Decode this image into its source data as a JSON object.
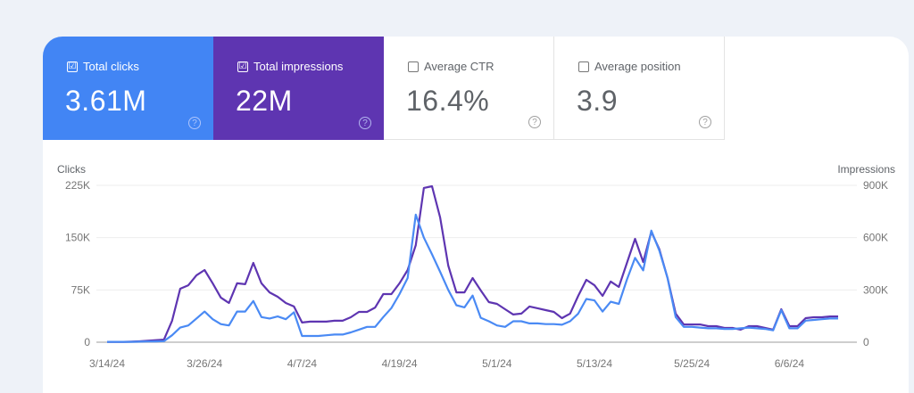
{
  "metrics": [
    {
      "label": "Total clicks",
      "value": "3.61M",
      "checked": true,
      "color": "#4285f4"
    },
    {
      "label": "Total impressions",
      "value": "22M",
      "checked": true,
      "color": "#5e35b1"
    },
    {
      "label": "Average CTR",
      "value": "16.4%",
      "checked": false
    },
    {
      "label": "Average position",
      "value": "3.9",
      "checked": false
    }
  ],
  "icons": {
    "checkbox_checked": "☑",
    "help": "?"
  },
  "chart_data": {
    "type": "line",
    "left_axis_title": "Clicks",
    "right_axis_title": "Impressions",
    "left_ticks": [
      "0",
      "75K",
      "150K",
      "225K"
    ],
    "right_ticks": [
      "0",
      "300K",
      "600K",
      "900K"
    ],
    "left_ylim": [
      0,
      225000
    ],
    "right_ylim": [
      0,
      900000
    ],
    "x_tick_labels": [
      "3/14/24",
      "3/26/24",
      "4/7/24",
      "4/19/24",
      "5/1/24",
      "5/13/24",
      "5/25/24",
      "6/6/24"
    ],
    "x_tick_day_index": [
      0,
      12,
      24,
      36,
      48,
      60,
      72,
      84
    ],
    "start_date": "3/14/24",
    "grid": true,
    "series": [
      {
        "name": "Clicks",
        "axis": "left",
        "color": "#4a8af4",
        "unit": "K",
        "values": [
          0.5,
          0.5,
          0.5,
          0.5,
          0.8,
          1,
          1.2,
          1.5,
          10,
          21,
          24,
          34,
          44,
          33,
          26,
          24,
          44,
          44,
          59,
          36,
          34,
          37,
          33,
          43,
          9,
          9,
          9,
          10,
          11,
          11,
          14,
          18,
          22,
          22,
          36,
          49,
          69,
          92,
          183,
          150,
          126,
          101,
          75,
          53,
          50,
          67,
          35,
          30,
          24,
          22,
          30,
          30,
          27,
          27,
          26,
          26,
          25,
          30,
          41,
          62,
          60,
          44,
          58,
          55,
          90,
          121,
          103,
          160,
          131,
          92,
          36,
          22,
          22,
          21,
          20,
          20,
          19,
          19,
          20,
          21,
          20,
          19,
          17,
          46,
          20,
          20,
          31,
          32,
          33,
          34,
          34
        ]
      },
      {
        "name": "Impressions",
        "axis": "right",
        "color": "#5e35b1",
        "unit": "K",
        "values": [
          2,
          2,
          2,
          3,
          5,
          8,
          12,
          15,
          123,
          307,
          327,
          384,
          414,
          338,
          256,
          225,
          338,
          333,
          455,
          338,
          286,
          261,
          225,
          205,
          113,
          118,
          118,
          118,
          123,
          123,
          143,
          174,
          174,
          199,
          276,
          276,
          338,
          414,
          557,
          885,
          895,
          716,
          440,
          286,
          286,
          368,
          297,
          230,
          220,
          189,
          159,
          164,
          205,
          195,
          184,
          174,
          138,
          164,
          266,
          358,
          327,
          266,
          348,
          317,
          455,
          593,
          460,
          634,
          532,
          368,
          164,
          102,
          102,
          102,
          92,
          92,
          82,
          82,
          72,
          92,
          92,
          82,
          72,
          189,
          92,
          92,
          138,
          143,
          143,
          148,
          148
        ]
      }
    ]
  }
}
